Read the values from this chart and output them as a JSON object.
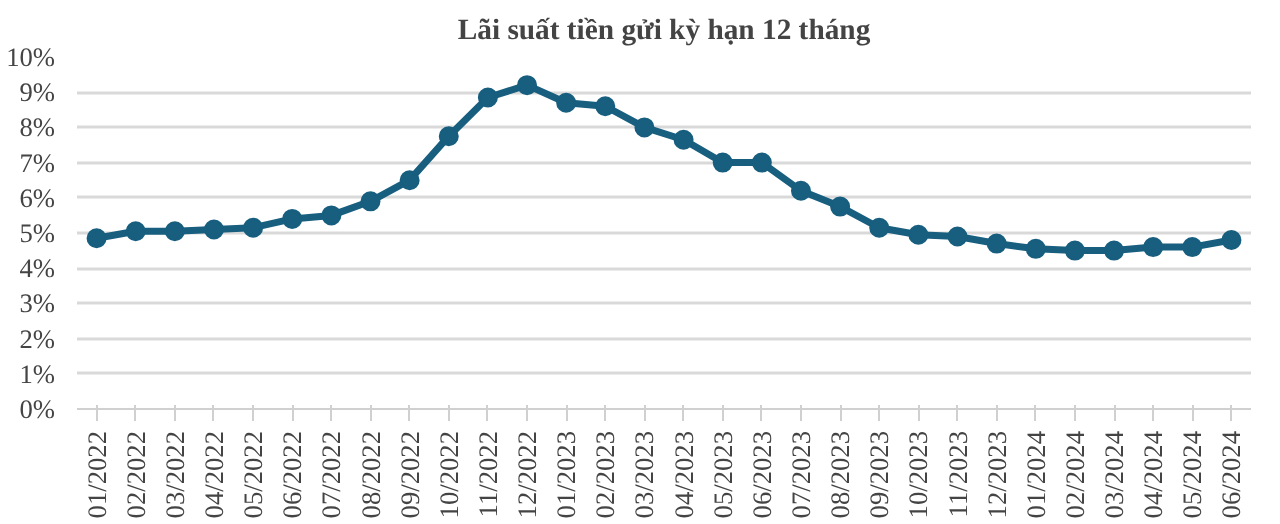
{
  "chart_data": {
    "type": "line",
    "title": "Lãi suất tiền gửi kỳ hạn 12 tháng",
    "categories": [
      "01/2022",
      "02/2022",
      "03/2022",
      "04/2022",
      "05/2022",
      "06/2022",
      "07/2022",
      "08/2022",
      "09/2022",
      "10/2022",
      "11/2022",
      "12/2022",
      "01/2023",
      "02/2023",
      "03/2023",
      "04/2023",
      "05/2023",
      "06/2023",
      "07/2023",
      "08/2023",
      "09/2023",
      "10/2023",
      "11/2023",
      "12/2023",
      "01/2024",
      "02/2024",
      "03/2024",
      "04/2024",
      "05/2024",
      "06/2024"
    ],
    "series": [
      {
        "color": "#175e7f",
        "values": [
          4.85,
          5.05,
          5.05,
          5.1,
          5.15,
          5.4,
          5.5,
          5.9,
          6.5,
          7.75,
          8.85,
          9.2,
          8.7,
          8.6,
          8.0,
          7.65,
          7.0,
          7.0,
          6.2,
          5.75,
          5.15,
          4.95,
          4.9,
          4.7,
          4.55,
          4.5,
          4.5,
          4.6,
          4.6,
          4.8
        ]
      }
    ],
    "ylim": [
      0,
      10
    ],
    "yticks": [
      {
        "value": 0,
        "label": "0%"
      },
      {
        "value": 1,
        "label": "1%"
      },
      {
        "value": 2,
        "label": "2%"
      },
      {
        "value": 3,
        "label": "3%"
      },
      {
        "value": 4,
        "label": "4%"
      },
      {
        "value": 5,
        "label": "5%"
      },
      {
        "value": 6,
        "label": "6%"
      },
      {
        "value": 7,
        "label": "7%"
      },
      {
        "value": 8,
        "label": "8%"
      },
      {
        "value": 9,
        "label": "9%"
      },
      {
        "value": 10,
        "label": "10%"
      }
    ],
    "grid": "y",
    "marker": "circle",
    "line_style": "solid"
  }
}
